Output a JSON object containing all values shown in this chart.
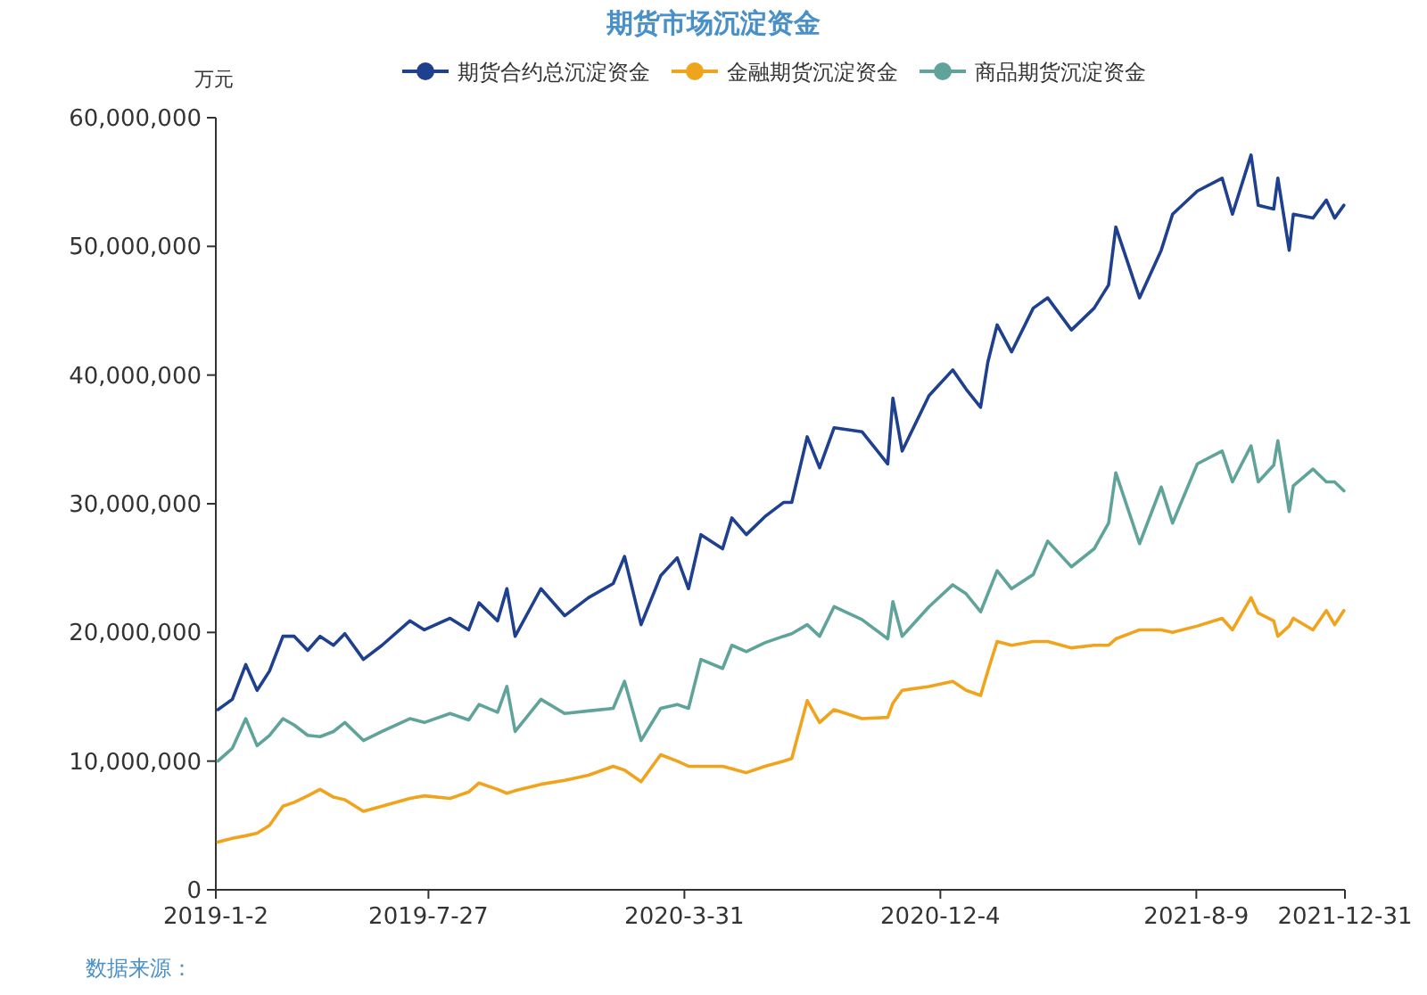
{
  "chart_data": {
    "type": "line",
    "title": "期货市场沉淀资金",
    "ylabel": "万元",
    "legend": "top",
    "grid": false,
    "annotations": [
      "数据来源："
    ],
    "x": [
      "2019-01-04",
      "2019-01-18",
      "2019-01-31",
      "2019-02-11",
      "2019-02-23",
      "2019-03-08",
      "2019-03-19",
      "2019-04-01",
      "2019-04-13",
      "2019-04-26",
      "2019-05-07",
      "2019-05-25",
      "2019-06-12",
      "2019-07-09",
      "2019-07-23",
      "2019-08-17",
      "2019-09-04",
      "2019-09-14",
      "2019-10-02",
      "2019-10-11",
      "2019-10-19",
      "2019-11-13",
      "2019-12-06",
      "2019-12-29",
      "2020-01-22",
      "2020-02-02",
      "2020-02-18",
      "2020-03-08",
      "2020-03-24",
      "2020-04-04",
      "2020-04-16",
      "2020-05-07",
      "2020-05-16",
      "2020-05-30",
      "2020-06-17",
      "2020-07-05",
      "2020-07-13",
      "2020-07-28",
      "2020-08-09",
      "2020-08-23",
      "2020-09-19",
      "2020-10-14",
      "2020-10-19",
      "2020-10-28",
      "2020-11-23",
      "2020-12-16",
      "2020-12-29",
      "2021-01-12",
      "2021-01-19",
      "2021-01-28",
      "2021-02-11",
      "2021-03-04",
      "2021-03-18",
      "2021-04-10",
      "2021-05-02",
      "2021-05-16",
      "2021-05-23",
      "2021-06-15",
      "2021-07-06",
      "2021-07-17",
      "2021-08-10",
      "2021-09-03",
      "2021-09-13",
      "2021-10-01",
      "2021-10-08",
      "2021-10-23",
      "2021-10-27",
      "2021-11-07",
      "2021-11-11",
      "2021-11-30",
      "2021-12-13",
      "2021-12-21",
      "2021-12-30"
    ],
    "series": [
      {
        "name": "期货合约总沉淀资金",
        "color": "#1f3f8f",
        "values": [
          14000000,
          14800000,
          17500000,
          15500000,
          17000000,
          19700000,
          19700000,
          18600000,
          19700000,
          19000000,
          19900000,
          17900000,
          19000000,
          20900000,
          20200000,
          21100000,
          20200000,
          22300000,
          20900000,
          23400000,
          19700000,
          23400000,
          21300000,
          22700000,
          23800000,
          25900000,
          20600000,
          24400000,
          25800000,
          23400000,
          27600000,
          26500000,
          28900000,
          27600000,
          29000000,
          30100000,
          30100000,
          35200000,
          32800000,
          35900000,
          35600000,
          33100000,
          38200000,
          34100000,
          38400000,
          40400000,
          38900000,
          37500000,
          41000000,
          43900000,
          41800000,
          45200000,
          46000000,
          43500000,
          45200000,
          47000000,
          51500000,
          46000000,
          49700000,
          52500000,
          54300000,
          55300000,
          52500000,
          57100000,
          53200000,
          52900000,
          55300000,
          49700000,
          52500000,
          52200000,
          53600000,
          52200000,
          53200000
        ]
      },
      {
        "name": "金融期货沉淀资金",
        "color": "#f0a31c",
        "values": [
          3700000,
          4000000,
          4200000,
          4400000,
          5000000,
          6500000,
          6800000,
          7300000,
          7800000,
          7200000,
          7000000,
          6100000,
          6500000,
          7100000,
          7300000,
          7100000,
          7600000,
          8300000,
          7800000,
          7500000,
          7700000,
          8200000,
          8500000,
          8900000,
          9600000,
          9300000,
          8400000,
          10500000,
          10000000,
          9600000,
          9600000,
          9600000,
          9400000,
          9100000,
          9600000,
          10000000,
          10200000,
          14700000,
          13000000,
          14000000,
          13300000,
          13400000,
          14500000,
          15500000,
          15800000,
          16200000,
          15500000,
          15100000,
          17000000,
          19300000,
          19000000,
          19300000,
          19300000,
          18800000,
          19000000,
          19000000,
          19500000,
          20200000,
          20200000,
          20000000,
          20500000,
          21100000,
          20200000,
          22700000,
          21500000,
          20900000,
          19700000,
          20500000,
          21100000,
          20200000,
          21700000,
          20600000,
          21700000
        ]
      },
      {
        "name": "商品期货沉淀资金",
        "color": "#5fa39a",
        "values": [
          10000000,
          11000000,
          13300000,
          11200000,
          12000000,
          13300000,
          12800000,
          12000000,
          11900000,
          12300000,
          13000000,
          11600000,
          12300000,
          13300000,
          13000000,
          13700000,
          13200000,
          14400000,
          13800000,
          15800000,
          12300000,
          14800000,
          13700000,
          13900000,
          14100000,
          16200000,
          11600000,
          14100000,
          14400000,
          14100000,
          17900000,
          17200000,
          19000000,
          18500000,
          19200000,
          19700000,
          19900000,
          20600000,
          19700000,
          22000000,
          21000000,
          19500000,
          22400000,
          19700000,
          22000000,
          23700000,
          23000000,
          21600000,
          23000000,
          24800000,
          23400000,
          24500000,
          27100000,
          25100000,
          26500000,
          28500000,
          32400000,
          26900000,
          31300000,
          28500000,
          33100000,
          34100000,
          31700000,
          34500000,
          31700000,
          33000000,
          34900000,
          29400000,
          31400000,
          32700000,
          31700000,
          31700000,
          31000000
        ]
      }
    ],
    "xlim": [
      "2019-01-02",
      "2021-12-31"
    ],
    "xticks": [
      {
        "value": "2019-01-02",
        "label": "2019-1-2"
      },
      {
        "value": "2019-07-27",
        "label": "2019-7-27"
      },
      {
        "value": "2020-03-31",
        "label": "2020-3-31"
      },
      {
        "value": "2020-12-04",
        "label": "2020-12-4"
      },
      {
        "value": "2021-08-09",
        "label": "2021-8-9"
      },
      {
        "value": "2021-12-31",
        "label": "2021-12-31"
      }
    ],
    "ylim": [
      0,
      60000000
    ],
    "yticks": [
      0,
      {
        "value": 10000000,
        "label": "10,000,000"
      },
      {
        "value": 20000000,
        "label": "20,000,000"
      },
      {
        "value": 30000000,
        "label": "30,000,000"
      },
      {
        "value": 40000000,
        "label": "40,000,000"
      },
      {
        "value": 50000000,
        "label": "50,000,000"
      },
      {
        "value": 60000000,
        "label": "60,000,000"
      }
    ]
  }
}
